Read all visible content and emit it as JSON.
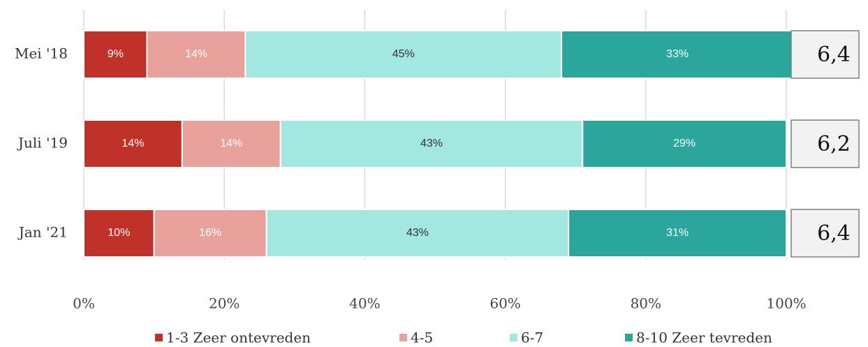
{
  "chart_data": {
    "type": "stacked_barh",
    "categories": [
      "Mei '18",
      "Juli '19",
      "Jan '21"
    ],
    "series": [
      {
        "name": "1-3 Zeer ontevreden",
        "color": "#c0312a",
        "values": [
          9,
          14,
          10
        ],
        "value_labels": [
          "9%",
          "14%",
          "10%"
        ]
      },
      {
        "name": "4-5",
        "color": "#e9a19b",
        "values": [
          14,
          14,
          16
        ],
        "value_labels": [
          "14%",
          "14%",
          "16%"
        ]
      },
      {
        "name": "6-7",
        "color": "#a3e7e1",
        "values": [
          45,
          43,
          43
        ],
        "value_labels": [
          "45%",
          "43%",
          "43%"
        ]
      },
      {
        "name": "8-10 Zeer tevreden",
        "color": "#2aa69d",
        "values": [
          33,
          29,
          31
        ],
        "value_labels": [
          "33%",
          "29%",
          "31%"
        ]
      }
    ],
    "scores": [
      "6,4",
      "6,2",
      "6,4"
    ],
    "xlim": [
      0,
      100
    ],
    "xticks": [
      {
        "value": 0,
        "label": "0%"
      },
      {
        "value": 20,
        "label": "20%"
      },
      {
        "value": 40,
        "label": "40%"
      },
      {
        "value": 60,
        "label": "60%"
      },
      {
        "value": 80,
        "label": "80%"
      },
      {
        "value": 100,
        "label": "100%"
      }
    ],
    "grid": true,
    "legend": "bottom"
  }
}
